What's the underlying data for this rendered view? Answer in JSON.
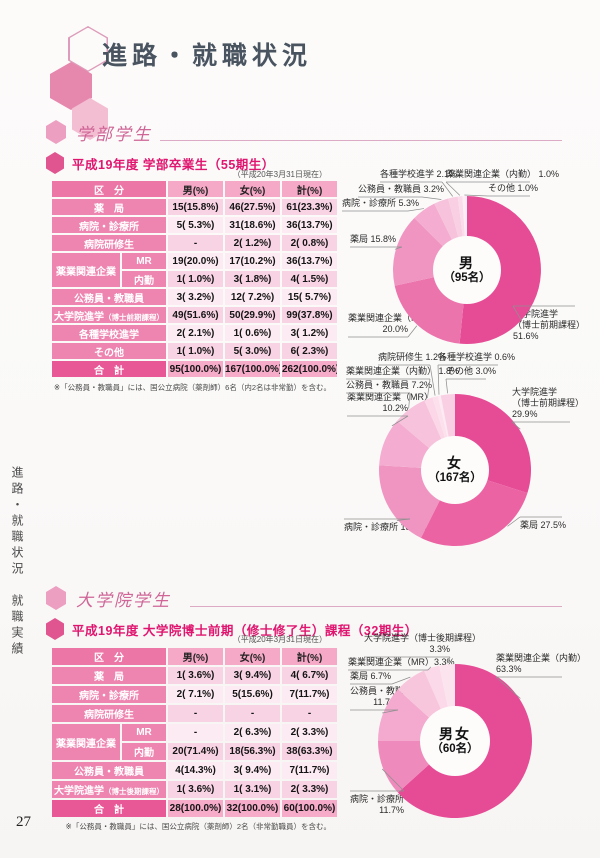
{
  "page": {
    "number": "27",
    "side_text": "進路・就職状況　就職実績"
  },
  "header": {
    "title": "進路・就職状況"
  },
  "style_colors": {
    "accent_pink": "#e64c96",
    "table_label_pink": "#ee84b0",
    "table_header_pink": "#ec77a6",
    "table_total_pink": "#e85796",
    "title_pink": "#e0156f",
    "title_gray": "#4a5460"
  },
  "sections": [
    {
      "heading": "学部学生",
      "table": {
        "title": "平成19年度 学部卒業生（55期生）",
        "note": "（平成20年3月31日現在）",
        "columns": [
          "区　分",
          "男(%)",
          "女(%)",
          "計(%)"
        ],
        "rows": [
          {
            "label": "薬　局",
            "m": "15(15.8%)",
            "f": "46(27.5%)",
            "t": "61(23.3%)"
          },
          {
            "label": "病院・診療所",
            "m": "5( 5.3%)",
            "f": "31(18.6%)",
            "t": "36(13.7%)"
          },
          {
            "label": "病院研修生",
            "m": "-",
            "f": "2( 1.2%)",
            "t": "2( 0.8%)"
          },
          {
            "group": "薬業関連企業",
            "label": "MR",
            "m": "19(20.0%)",
            "f": "17(10.2%)",
            "t": "36(13.7%)"
          },
          {
            "sub": true,
            "label": "内勤",
            "m": "1( 1.0%)",
            "f": "3( 1.8%)",
            "t": "4( 1.5%)"
          },
          {
            "label": "公務員・教職員",
            "m": "3( 3.2%)",
            "f": "12( 7.2%)",
            "t": "15( 5.7%)"
          },
          {
            "label": "大学院進学",
            "label_note": "（博士前期課程）",
            "m": "49(51.6%)",
            "f": "50(29.9%)",
            "t": "99(37.8%)"
          },
          {
            "label": "各種学校進学",
            "m": "2( 2.1%)",
            "f": "1( 0.6%)",
            "t": "3( 1.2%)"
          },
          {
            "label": "その他",
            "m": "1( 1.0%)",
            "f": "5( 3.0%)",
            "t": "6( 2.3%)"
          }
        ],
        "total": {
          "label": "合　計",
          "m": "95(100.0%)",
          "f": "167(100.0%)",
          "t": "262(100.0%)"
        },
        "footnote": "※「公務員・教職員」には、国公立病院（薬剤師）6名（内2名は非常勤）を含む。"
      }
    },
    {
      "heading": "大学院学生",
      "table": {
        "title": "平成19年度 大学院博士前期（修士修了生）課程（32期生）",
        "note": "（平成20年3月31日現在）",
        "columns": [
          "区　分",
          "男(%)",
          "女(%)",
          "計(%)"
        ],
        "rows": [
          {
            "label": "薬　局",
            "m": "1( 3.6%)",
            "f": "3( 9.4%)",
            "t": "4( 6.7%)"
          },
          {
            "label": "病院・診療所",
            "m": "2( 7.1%)",
            "f": "5(15.6%)",
            "t": "7(11.7%)"
          },
          {
            "label": "病院研修生",
            "m": "-",
            "f": "-",
            "t": "-"
          },
          {
            "group": "薬業関連企業",
            "label": "MR",
            "m": "-",
            "f": "2( 6.3%)",
            "t": "2( 3.3%)"
          },
          {
            "sub": true,
            "label": "内勤",
            "m": "20(71.4%)",
            "f": "18(56.3%)",
            "t": "38(63.3%)"
          },
          {
            "label": "公務員・教職員",
            "m": "4(14.3%)",
            "f": "3( 9.4%)",
            "t": "7(11.7%)"
          },
          {
            "label": "大学院進学",
            "label_note": "（博士後期課程）",
            "m": "1( 3.6%)",
            "f": "1( 3.1%)",
            "t": "2( 3.3%)"
          }
        ],
        "total": {
          "label": "合　計",
          "m": "28(100.0%)",
          "f": "32(100.0%)",
          "t": "60(100.0%)"
        },
        "footnote": "※「公務員・教職員」には、国公立病院（薬剤師）2名（非常勤職員）を含む。"
      }
    }
  ],
  "chart_data": [
    {
      "type": "pie",
      "donut": true,
      "center_title": "男",
      "center_subtitle": "（95名）",
      "slices": [
        {
          "label": "大学院進学（博士前期課程）",
          "pct": 51.6,
          "color": "#e64c96",
          "callout": [
            "大学院進学",
            "（博士前期課程）",
            "51.6%"
          ]
        },
        {
          "label": "薬業関連企業（MR）",
          "pct": 20.0,
          "color": "#ec74ad",
          "callout": [
            "薬業関連企業（MR）",
            "20.0%"
          ]
        },
        {
          "label": "薬局",
          "pct": 15.8,
          "color": "#f095c1",
          "callout": [
            "薬局 15.8%"
          ]
        },
        {
          "label": "病院・診療所",
          "pct": 5.3,
          "color": "#f4add0",
          "callout": [
            "病院・診療所 5.3%"
          ]
        },
        {
          "label": "公務員・教職員",
          "pct": 3.2,
          "color": "#f7c2db",
          "callout": [
            "公務員・教職員 3.2%"
          ]
        },
        {
          "label": "各種学校進学",
          "pct": 2.1,
          "color": "#f9cfe3",
          "callout": [
            "各種学校進学 2.1%"
          ]
        },
        {
          "label": "薬業関連企業（内勤）",
          "pct": 1.0,
          "color": "#fbdcea",
          "callout": [
            "薬業関連企業（内勤） 1.0%"
          ]
        },
        {
          "label": "その他",
          "pct": 1.0,
          "color": "#fdeef5",
          "callout": [
            "その他 1.0%"
          ]
        }
      ]
    },
    {
      "type": "pie",
      "donut": true,
      "center_title": "女",
      "center_subtitle": "（167名）",
      "slices": [
        {
          "label": "大学院進学（博士前期課程）",
          "pct": 29.9,
          "color": "#e64c96",
          "callout": [
            "大学院進学",
            "（博士前期課程）",
            "29.9%"
          ]
        },
        {
          "label": "薬局",
          "pct": 27.5,
          "color": "#eb63a3",
          "callout": [
            "薬局 27.5%"
          ]
        },
        {
          "label": "病院・診療所",
          "pct": 18.6,
          "color": "#f095c1",
          "callout": [
            "病院・診療所 18.6%"
          ]
        },
        {
          "label": "薬業関連企業（MR）",
          "pct": 10.2,
          "color": "#f4add0",
          "callout": [
            "薬業関連企業（MR）",
            "10.2%"
          ]
        },
        {
          "label": "公務員・教職員",
          "pct": 7.2,
          "color": "#f7c2db",
          "callout": [
            "公務員・教職員 7.2%"
          ]
        },
        {
          "label": "薬業関連企業（内勤）",
          "pct": 1.8,
          "color": "#fbd7e7",
          "callout": [
            "薬業関連企業（内勤） 1.8%"
          ]
        },
        {
          "label": "病院研修生",
          "pct": 1.2,
          "color": "#fce1ec",
          "callout": [
            "病院研修生 1.2%"
          ]
        },
        {
          "label": "各種学校進学",
          "pct": 0.6,
          "color": "#fdeaf2",
          "callout": [
            "各種学校進学 0.6%"
          ]
        },
        {
          "label": "その他",
          "pct": 3.0,
          "color": "#f9cfe3",
          "callout": [
            "その他 3.0%"
          ]
        }
      ]
    },
    {
      "type": "pie",
      "donut": true,
      "center_title": "男女",
      "center_subtitle": "（60名）",
      "slices": [
        {
          "label": "薬業関連企業（内勤）",
          "pct": 63.3,
          "color": "#e64c96",
          "callout": [
            "薬業関連企業（内勤）",
            "63.3%"
          ]
        },
        {
          "label": "病院・診療所",
          "pct": 11.7,
          "color": "#ef8bbc",
          "callout": [
            "病院・診療所",
            "11.7%"
          ]
        },
        {
          "label": "公務員・教職員",
          "pct": 11.7,
          "color": "#f4a9ce",
          "callout": [
            "公務員・教職員",
            "11.7%"
          ]
        },
        {
          "label": "薬局",
          "pct": 6.7,
          "color": "#f8c6dc",
          "callout": [
            "薬局 6.7%"
          ]
        },
        {
          "label": "薬業関連企業（MR）",
          "pct": 3.3,
          "color": "#fbd9e8",
          "callout": [
            "薬業関連企業（MR）3.3%"
          ]
        },
        {
          "label": "大学院進学（博士後期課程）",
          "pct": 3.3,
          "color": "#fce4ee",
          "callout": [
            "大学院進学（博士後期課程）",
            "3.3%"
          ]
        }
      ]
    }
  ]
}
